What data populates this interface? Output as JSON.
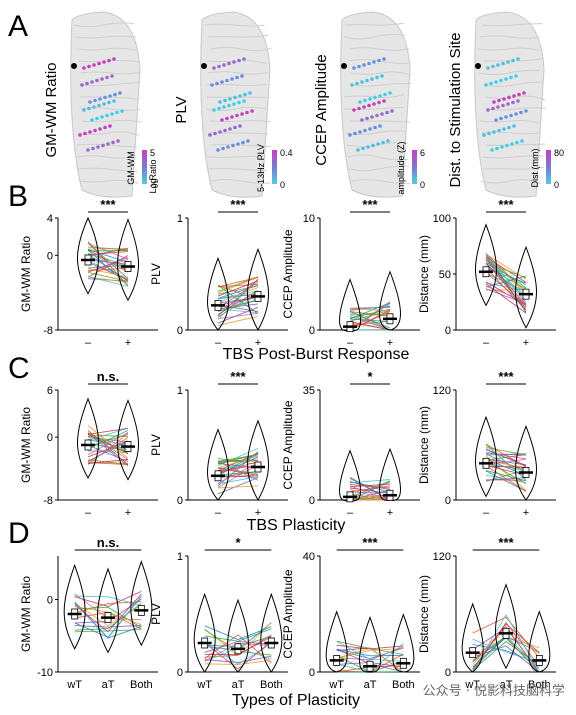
{
  "panel_A": {
    "letter": "A",
    "brains": [
      {
        "title": "GM-WM Ratio",
        "cbar_top": "5",
        "cbar_bottom": "-5",
        "cbar_label1": "GM-WM",
        "cbar_label2": "Ratio",
        "cbar_label3": "Log",
        "colors": [
          "#c840c0",
          "#4fb0e0"
        ]
      },
      {
        "title": "PLV",
        "cbar_top": "0.4",
        "cbar_bottom": "0",
        "cbar_label1": "5-13Hz PLV",
        "cbar_label2": "",
        "cbar_label3": "",
        "colors": [
          "#c840c0",
          "#4fb0e0"
        ]
      },
      {
        "title": "CCEP Amplitude",
        "cbar_top": "6",
        "cbar_bottom": "0",
        "cbar_label1": "amplitude (Z)",
        "cbar_label2": "",
        "cbar_label3": "",
        "colors": [
          "#c840c0",
          "#4fb0e0"
        ]
      },
      {
        "title": "Dist. to Stimulation Site",
        "cbar_top": "80",
        "cbar_bottom": "0",
        "cbar_label1": "Dist (mm)",
        "cbar_label2": "",
        "cbar_label3": "",
        "colors": [
          "#c840c0",
          "#4fb0e0"
        ]
      }
    ]
  },
  "panel_B": {
    "letter": "B",
    "row_title": "TBS Post-Burst Response"
  },
  "panel_C": {
    "letter": "C",
    "row_title": "TBS Plasticity"
  },
  "panel_D": {
    "letter": "D",
    "row_title": "Types of Plasticity"
  },
  "watermark": "公众号 · 悦影科技脑科学",
  "chart_data": [
    {
      "panel": "B",
      "type": "violin-paired",
      "ylabel": "GM-WM Ratio",
      "categories": [
        "–",
        "+"
      ],
      "yticks": [
        "4",
        "0",
        "-8"
      ],
      "ylim": [
        -8,
        4
      ],
      "significance": "***",
      "medians": [
        -0.5,
        -1.2
      ]
    },
    {
      "panel": "B",
      "type": "violin-paired",
      "ylabel": "PLV",
      "categories": [
        "–",
        "+"
      ],
      "yticks": [
        "1",
        "0"
      ],
      "ylim": [
        0,
        1
      ],
      "significance": "***",
      "medians": [
        0.22,
        0.3
      ]
    },
    {
      "panel": "B",
      "type": "violin-paired",
      "ylabel": "CCEP Amplitude",
      "categories": [
        "–",
        "+"
      ],
      "yticks": [
        "10",
        "0"
      ],
      "ylim": [
        0,
        10
      ],
      "significance": "***",
      "medians": [
        0.3,
        1.0
      ]
    },
    {
      "panel": "B",
      "type": "violin-paired",
      "ylabel": "Distance (mm)",
      "categories": [
        "–",
        "+"
      ],
      "yticks": [
        "100",
        "50",
        "0"
      ],
      "ylim": [
        0,
        100
      ],
      "significance": "***",
      "medians": [
        52,
        32
      ]
    },
    {
      "panel": "C",
      "type": "violin-paired",
      "ylabel": "GM-WM Ratio",
      "categories": [
        "–",
        "+"
      ],
      "yticks": [
        "6",
        "0",
        "-8"
      ],
      "ylim": [
        -8,
        6
      ],
      "significance": "n.s.",
      "medians": [
        -1.0,
        -1.2
      ]
    },
    {
      "panel": "C",
      "type": "violin-paired",
      "ylabel": "PLV",
      "categories": [
        "–",
        "+"
      ],
      "yticks": [
        "1",
        "0"
      ],
      "ylim": [
        0,
        1
      ],
      "significance": "***",
      "medians": [
        0.22,
        0.3
      ]
    },
    {
      "panel": "C",
      "type": "violin-paired",
      "ylabel": "CCEP Amplitude",
      "categories": [
        "–",
        "+"
      ],
      "yticks": [
        "35",
        "0"
      ],
      "ylim": [
        0,
        35
      ],
      "significance": "*",
      "medians": [
        1.0,
        1.5
      ]
    },
    {
      "panel": "C",
      "type": "violin-paired",
      "ylabel": "Distance (mm)",
      "categories": [
        "–",
        "+"
      ],
      "yticks": [
        "120",
        "0"
      ],
      "ylim": [
        0,
        120
      ],
      "significance": "***",
      "medians": [
        40,
        30
      ]
    },
    {
      "panel": "D",
      "type": "violin-grouped",
      "ylabel": "GM-WM Ratio",
      "categories": [
        "wT",
        "aT",
        "Both"
      ],
      "yticks": [
        "0",
        "-10"
      ],
      "ylim": [
        -10,
        6
      ],
      "significance": "n.s.",
      "medians": [
        -2,
        -2.5,
        -1.5
      ]
    },
    {
      "panel": "D",
      "type": "violin-grouped",
      "ylabel": "PLV",
      "categories": [
        "wT",
        "aT",
        "Both"
      ],
      "yticks": [
        "1",
        "0"
      ],
      "ylim": [
        0,
        1
      ],
      "significance": "*",
      "medians": [
        0.25,
        0.2,
        0.25
      ]
    },
    {
      "panel": "D",
      "type": "violin-grouped",
      "ylabel": "CCEP Amplitude",
      "categories": [
        "wT",
        "aT",
        "Both"
      ],
      "yticks": [
        "40",
        "0"
      ],
      "ylim": [
        0,
        40
      ],
      "significance": "***",
      "medians": [
        4,
        2,
        3
      ]
    },
    {
      "panel": "D",
      "type": "violin-grouped",
      "ylabel": "Distance (mm)",
      "categories": [
        "wT",
        "aT",
        "Both"
      ],
      "yticks": [
        "120",
        "0"
      ],
      "ylim": [
        0,
        120
      ],
      "significance": "***",
      "medians": [
        20,
        40,
        12
      ]
    }
  ]
}
